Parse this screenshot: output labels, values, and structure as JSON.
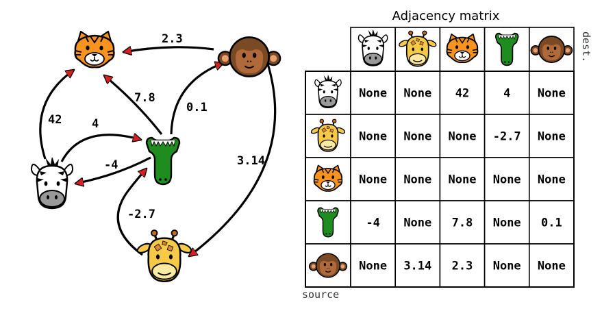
{
  "matrix": {
    "title": "Adjacency matrix",
    "dest_label": "dest.",
    "source_label": "source",
    "columns": [
      "zebra",
      "giraffe",
      "tiger",
      "crocodile",
      "monkey"
    ],
    "rows": [
      {
        "animal": "zebra",
        "cells": [
          "None",
          "None",
          "42",
          "4",
          "None"
        ]
      },
      {
        "animal": "giraffe",
        "cells": [
          "None",
          "None",
          "None",
          "-2.7",
          "None"
        ]
      },
      {
        "animal": "tiger",
        "cells": [
          "None",
          "None",
          "None",
          "None",
          "None"
        ]
      },
      {
        "animal": "crocodile",
        "cells": [
          "-4",
          "None",
          "7.8",
          "None",
          "0.1"
        ]
      },
      {
        "animal": "monkey",
        "cells": [
          "None",
          "3.14",
          "2.3",
          "None",
          "None"
        ]
      }
    ]
  },
  "graph": {
    "edges": [
      {
        "from": "monkey",
        "to": "tiger",
        "label": "2.3"
      },
      {
        "from": "crocodile",
        "to": "tiger",
        "label": "7.8"
      },
      {
        "from": "crocodile",
        "to": "monkey",
        "label": "0.1"
      },
      {
        "from": "zebra",
        "to": "tiger",
        "label": "42"
      },
      {
        "from": "zebra",
        "to": "crocodile",
        "label": "4"
      },
      {
        "from": "crocodile",
        "to": "zebra",
        "label": "-4"
      },
      {
        "from": "monkey",
        "to": "giraffe",
        "label": "3.14"
      },
      {
        "from": "giraffe",
        "to": "crocodile",
        "label": "-2.7"
      }
    ]
  },
  "colors": {
    "tiger": "#f7931e",
    "monkey": "#7a4a24",
    "crocodile": "#1e8c1e",
    "giraffe": "#f7c948",
    "zebra": "#ffffff",
    "arrowhead": "#d62020",
    "line": "#000000"
  }
}
